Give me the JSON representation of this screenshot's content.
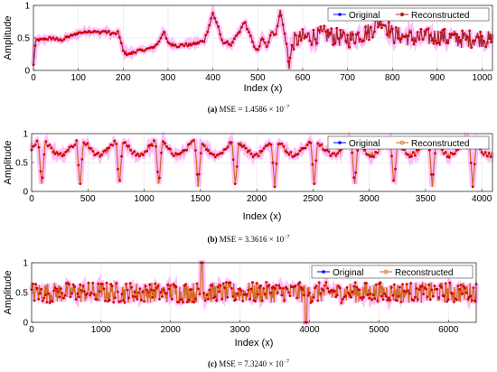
{
  "chart_data": [
    {
      "id": "a",
      "type": "line",
      "ylabel": "Amplitude",
      "xlabel": "Index (x)",
      "xlim": [
        0,
        1023
      ],
      "ylim": [
        0,
        1
      ],
      "xticks": [
        0,
        100,
        200,
        300,
        400,
        500,
        600,
        700,
        800,
        900,
        1000
      ],
      "yticks": [
        0,
        0.5,
        1
      ],
      "ytick_labels": [
        "0",
        "0.5",
        "1"
      ],
      "grid": true,
      "legend_position": "top-right",
      "series": [
        {
          "name": "Original",
          "color": "#0000ff",
          "marker": "dot"
        },
        {
          "name": "Reconstructed",
          "color": "#a52a2a",
          "marker": "dot"
        }
      ],
      "x": [
        0,
        5,
        10,
        20,
        40,
        60,
        80,
        100,
        120,
        140,
        160,
        180,
        190,
        200,
        210,
        230,
        250,
        270,
        280,
        290,
        300,
        320,
        350,
        380,
        390,
        400,
        410,
        420,
        440,
        460,
        470,
        480,
        490,
        500,
        510,
        520,
        530,
        540,
        550,
        560,
        570,
        580,
        600,
        650,
        700,
        750,
        775,
        800,
        850,
        900,
        950,
        1000,
        1023
      ],
      "y": [
        0.08,
        0.45,
        0.48,
        0.47,
        0.5,
        0.46,
        0.52,
        0.57,
        0.6,
        0.59,
        0.6,
        0.56,
        0.58,
        0.3,
        0.25,
        0.3,
        0.32,
        0.36,
        0.45,
        0.6,
        0.42,
        0.38,
        0.4,
        0.45,
        0.65,
        0.88,
        0.7,
        0.45,
        0.4,
        0.6,
        0.75,
        0.6,
        0.4,
        0.3,
        0.5,
        0.35,
        0.6,
        0.55,
        0.92,
        0.55,
        0.1,
        0.45,
        0.5,
        0.55,
        0.48,
        0.6,
        0.8,
        0.55,
        0.5,
        0.52,
        0.48,
        0.5,
        0.45
      ],
      "caption_label": "(a)",
      "caption_text": "MSE = 1.4586 × 10",
      "caption_exp": "−7"
    },
    {
      "id": "b",
      "type": "line",
      "ylabel": "Amplitude",
      "xlabel": "Index (x)",
      "xlim": [
        0,
        4095
      ],
      "ylim": [
        0,
        1
      ],
      "xticks": [
        0,
        500,
        1000,
        1500,
        2000,
        2500,
        3000,
        3500,
        4000
      ],
      "yticks": [
        0,
        0.5,
        1
      ],
      "ytick_labels": [
        "0",
        "0.5",
        "1"
      ],
      "grid": true,
      "legend_position": "top-right",
      "series": [
        {
          "name": "Original",
          "color": "#0000ff",
          "marker": "dot"
        },
        {
          "name": "Reconstructed",
          "color": "#d2691e",
          "marker": "circle"
        }
      ],
      "spike_x": [
        90,
        430,
        780,
        1130,
        1480,
        1810,
        2160,
        2510,
        2870,
        3220,
        3560,
        3920
      ],
      "spike_min": 0.08,
      "baseline": 0.75,
      "caption_label": "(b)",
      "caption_text": "MSE = 3.3616 × 10",
      "caption_exp": "−7"
    },
    {
      "id": "c",
      "type": "line",
      "ylabel": "Amplitude",
      "xlabel": "Index (x)",
      "xlim": [
        0,
        6400
      ],
      "ylim": [
        0,
        1
      ],
      "xticks": [
        0,
        1000,
        2000,
        3000,
        4000,
        5000,
        6000
      ],
      "yticks": [
        0,
        0.5,
        1
      ],
      "ytick_labels": [
        "0",
        "0.5",
        "1"
      ],
      "grid": true,
      "legend_position": "top-right",
      "series": [
        {
          "name": "Original",
          "color": "#0000ff",
          "marker": "dot"
        },
        {
          "name": "Reconstructed",
          "color": "#d2691e",
          "marker": "circle"
        }
      ],
      "spikes": [
        [
          2450,
          1.0
        ],
        [
          3950,
          0.0
        ]
      ],
      "baseline": 0.5,
      "caption_label": "(c)",
      "caption_text": "MSE = 7.3240 × 10",
      "caption_exp": "−7"
    }
  ]
}
